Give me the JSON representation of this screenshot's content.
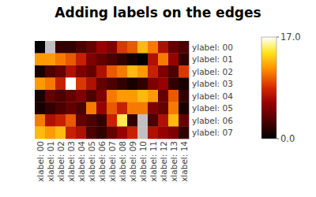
{
  "chart_data": {
    "type": "heatmap",
    "title": "Adding labels on the edges",
    "categories": [
      "xlabel: 00",
      "xlabel: 01",
      "xlabel: 02",
      "xlabel: 03",
      "xlabel: 04",
      "xlabel: 05",
      "xlabel: 06",
      "xlabel: 07",
      "xlabel: 08",
      "xlabel: 09",
      "xlabel: 10",
      "xlabel: 11",
      "xlabel: 12",
      "xlabel: 13",
      "xlabel: 14"
    ],
    "y_categories": [
      "ylabel: 00",
      "ylabel: 01",
      "ylabel: 02",
      "ylabel: 03",
      "ylabel: 04",
      "ylabel: 05",
      "ylabel: 06",
      "ylabel: 07"
    ],
    "cells": [
      [
        0,
        null,
        2,
        2,
        3,
        4,
        6,
        5,
        9,
        10,
        13,
        11,
        7,
        4,
        3
      ],
      [
        12,
        12,
        11,
        10,
        8,
        5,
        4,
        3,
        2,
        1,
        0,
        7,
        11,
        6,
        2
      ],
      [
        1,
        3,
        4,
        7,
        5,
        4,
        7,
        10,
        11,
        13,
        12,
        8,
        5,
        3,
        9
      ],
      [
        12,
        11,
        8,
        17,
        9,
        7,
        4,
        3,
        2,
        1,
        2,
        5,
        6,
        2,
        1
      ],
      [
        1,
        4,
        3,
        4,
        5,
        3,
        5,
        11,
        12,
        12,
        13,
        12,
        4,
        10,
        2
      ],
      [
        1,
        2,
        3,
        4,
        3,
        11,
        6,
        10,
        8,
        11,
        11,
        5,
        4,
        11,
        1
      ],
      [
        11,
        7,
        8,
        10,
        4,
        3,
        2,
        8,
        15,
        2,
        null,
        3,
        7,
        13,
        4
      ],
      [
        13,
        12,
        13,
        8,
        7,
        3,
        2,
        4,
        6,
        8,
        null,
        7,
        6,
        5,
        2
      ]
    ],
    "colorbar": {
      "range": [
        0,
        17
      ],
      "ticks": [
        {
          "value": 0,
          "label": "0.0"
        },
        {
          "value": 17,
          "label": "17.0"
        }
      ]
    }
  }
}
